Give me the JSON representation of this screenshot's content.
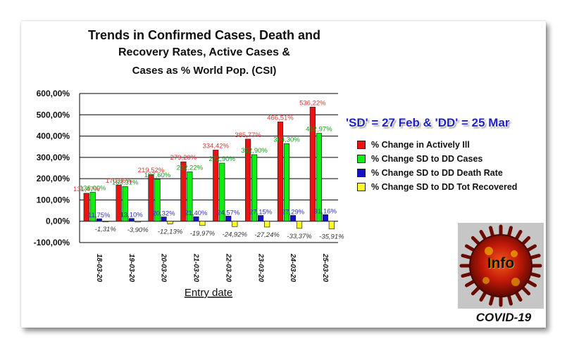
{
  "title_line1": "Trends in Confirmed Cases, Death and",
  "title_line2": "Recovery Rates, Active Cases &",
  "title_line3": "Cases as % World Pop. (CSI)",
  "banner": "'SD' = 27 Feb & 'DD' = 25 Mar",
  "logo_text": "Info",
  "logo_caption": "COVID-19",
  "colors": {
    "red": "#ee1111",
    "green": "#11ee11",
    "blue": "#1111cc",
    "yellow": "#ffff22"
  },
  "chart_data": {
    "type": "bar",
    "xlabel": "Entry date",
    "ylabel": "",
    "ylim": [
      -100,
      600
    ],
    "yticks": [
      "-100,00%",
      "0,00%",
      "100,00%",
      "200,00%",
      "300,00%",
      "400,00%",
      "500,00%",
      "600,00%"
    ],
    "grid": true,
    "legend_position": "right",
    "categories": [
      "18-03-20",
      "19-03-20",
      "20-03-20",
      "21-03-20",
      "22-03-20",
      "23-03-20",
      "24-03-20",
      "25-03-20"
    ],
    "series": [
      {
        "name": "% Change in Actively Ill",
        "color": "#ee1111",
        "values": [
          131.47,
          170.06,
          219.52,
          279.2,
          334.42,
          385.77,
          466.51,
          536.22
        ],
        "labels": [
          "131,47%",
          "170,06%",
          "219,52%",
          "279,20%",
          "334,42%",
          "385,77%",
          "466,51%",
          "536,22%"
        ]
      },
      {
        "name": "% Change SD to DD Cases",
        "color": "#11ee11",
        "values": [
          136.0,
          163.31,
          197.6,
          232.22,
          272.9,
          312.9,
          364.3,
          412.97
        ],
        "labels": [
          "136,00%",
          "163,31%",
          "197,60%",
          "232,22%",
          "272,90%",
          "312,90%",
          "364,30%",
          "412,97%"
        ]
      },
      {
        "name": "% Change SD to DD Death Rate",
        "color": "#1111cc",
        "values": [
          11.75,
          13.1,
          20.32,
          21.4,
          24.57,
          27.15,
          27.29,
          31.16
        ],
        "labels": [
          "11,75%",
          "13,10%",
          "20,32%",
          "21,40%",
          "24,57%",
          "27,15%",
          "27,29%",
          "31,16%"
        ]
      },
      {
        "name": "% Change SD to DD Tot Recovered",
        "color": "#ffff22",
        "values": [
          -1.31,
          -3.9,
          -12.13,
          -19.97,
          -24.92,
          -27.24,
          -33.37,
          -35.91
        ],
        "labels": [
          "-1,31%",
          "-3,90%",
          "-12,13%",
          "-19,97%",
          "-24,92%",
          "-27,24%",
          "-33,37%",
          "-35,91%"
        ]
      }
    ]
  }
}
